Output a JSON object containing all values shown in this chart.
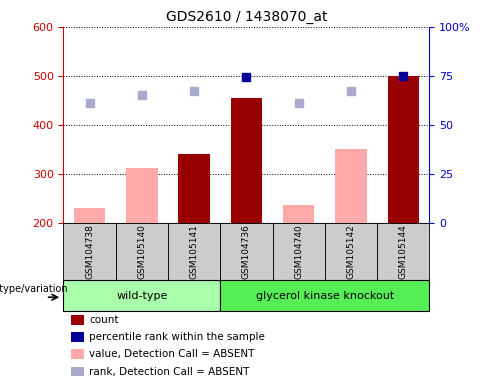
{
  "title": "GDS2610 / 1438070_at",
  "samples": [
    "GSM104738",
    "GSM105140",
    "GSM105141",
    "GSM104736",
    "GSM104740",
    "GSM105142",
    "GSM105144"
  ],
  "bar_values": [
    230,
    312,
    340,
    455,
    237,
    350,
    500
  ],
  "bar_absent": [
    true,
    true,
    false,
    false,
    true,
    true,
    false
  ],
  "rank_values": [
    445,
    460,
    470,
    497,
    445,
    470,
    500
  ],
  "rank_absent": [
    true,
    true,
    true,
    false,
    true,
    true,
    false
  ],
  "ylim_left": [
    200,
    600
  ],
  "ylim_right": [
    0,
    100
  ],
  "yticks_left": [
    200,
    300,
    400,
    500,
    600
  ],
  "yticks_right": [
    0,
    25,
    50,
    75,
    100
  ],
  "yticklabels_right": [
    "0",
    "25",
    "50",
    "75",
    "100%"
  ],
  "color_dark_red": "#990000",
  "color_pink": "#FFAAAA",
  "color_dark_blue": "#000099",
  "color_light_blue": "#AAAACC",
  "color_axis_left": "#CC0000",
  "color_axis_right": "#0000CC",
  "bar_width": 0.6,
  "group1_label": "wild-type",
  "group2_label": "glycerol kinase knockout",
  "group1_color": "#AAFFAA",
  "group2_color": "#55EE55",
  "sample_box_color": "#CCCCCC",
  "legend_labels": [
    "count",
    "percentile rank within the sample",
    "value, Detection Call = ABSENT",
    "rank, Detection Call = ABSENT"
  ],
  "legend_colors": [
    "#990000",
    "#000099",
    "#FFAAAA",
    "#AAAACC"
  ]
}
